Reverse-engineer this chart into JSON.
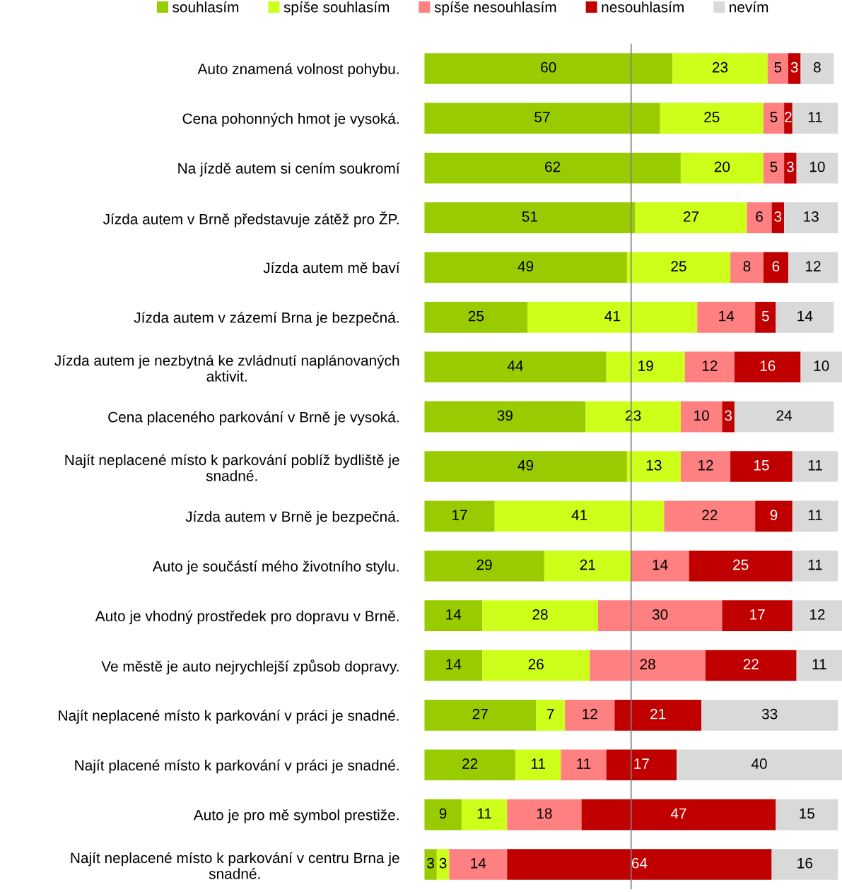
{
  "chart_data": {
    "type": "bar",
    "orientation": "horizontal",
    "stacked": true,
    "data_labels": true,
    "tick_labels": "y",
    "grid": false,
    "legend": "top",
    "categories": [
      "Auto znamená volnost pohybu.",
      "Cena pohonných hmot je vysoká.",
      "Na jízdě autem si cením soukromí",
      "Jízda autem v Brně představuje zátěž pro ŽP.",
      "Jízda autem mě baví",
      "Jízda autem v zázemí Brna je bezpečná.",
      "Jízda autem je nezbytná ke zvládnutí naplánovaných\naktivit.",
      "Cena placeného parkování v Brně je vysoká.",
      "Najít neplacené místo k parkování poblíž bydliště je\nsnadné.",
      "Jízda autem v Brně je bezpečná.",
      "Auto je součástí mého životního stylu.",
      "Auto je vhodný prostředek pro dopravu v Brně.",
      "Ve městě je auto nejrychlejší způsob dopravy.",
      "Najít neplacené místo k parkování v práci je snadné.",
      "Najít placené místo k parkování v práci je snadné.",
      "Auto je pro mě symbol prestiže.",
      "Najít neplacené místo k parkování v centru Brna je\nsnadné."
    ],
    "series": [
      {
        "name": "souhlasím",
        "color": "#99cc00",
        "values": [
          60,
          57,
          62,
          51,
          49,
          25,
          44,
          39,
          49,
          17,
          29,
          14,
          14,
          27,
          22,
          9,
          3
        ]
      },
      {
        "name": "spíše souhlasím",
        "color": "#ccff19",
        "values": [
          23,
          25,
          20,
          27,
          25,
          41,
          19,
          23,
          13,
          41,
          21,
          28,
          26,
          7,
          11,
          11,
          3
        ]
      },
      {
        "name": "spíše nesouhlasím",
        "color": "#ff8080",
        "values": [
          5,
          5,
          5,
          6,
          8,
          14,
          12,
          10,
          12,
          22,
          14,
          30,
          28,
          12,
          11,
          18,
          14
        ]
      },
      {
        "name": "nesouhlasím",
        "color": "#c00000",
        "values": [
          3,
          2,
          3,
          3,
          6,
          5,
          16,
          3,
          15,
          9,
          25,
          17,
          22,
          21,
          17,
          47,
          64
        ]
      },
      {
        "name": "nevím",
        "color": "#d9d9d9",
        "values": [
          8,
          11,
          10,
          13,
          12,
          14,
          10,
          24,
          11,
          11,
          11,
          12,
          11,
          33,
          40,
          15,
          16
        ]
      }
    ],
    "ref_lines": [
      {
        "axis": "x",
        "value": 50,
        "color": "#808080"
      }
    ]
  }
}
